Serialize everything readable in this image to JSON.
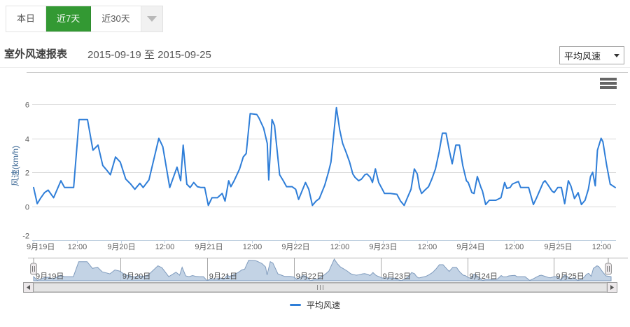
{
  "tabs": {
    "items": [
      {
        "label": "本日",
        "active": false
      },
      {
        "label": "近7天",
        "active": true
      },
      {
        "label": "近30天",
        "active": false
      }
    ]
  },
  "header": {
    "title": "室外风速报表",
    "date_range": "2015-09-19 至 2015-09-25",
    "metric_selected": "平均风速"
  },
  "legend": {
    "series_label": "平均风速"
  },
  "colors": {
    "accent_green": "#339933",
    "series_line": "#2f7ed8",
    "navigator_fill": "#b9cbe0",
    "navigator_line": "#7f9bbd",
    "axis_title": "#4d759e",
    "gridline": "#d8d8d8",
    "axis_line": "#c0d0e0"
  },
  "chart_data": {
    "type": "line",
    "title": "",
    "xlabel": "",
    "ylabel": "风速(km/h)",
    "ylim": [
      -2,
      6
    ],
    "yticks": [
      6,
      4,
      2,
      0,
      -2
    ],
    "x_range_hours": 160,
    "x_start": "2015-09-19 00:00",
    "x_end": "2015-09-25 16:00",
    "grid": true,
    "legend_position": "bottom",
    "xtick_labels": [
      "9月19日",
      "12:00",
      "9月20日",
      "12:00",
      "9月21日",
      "12:00",
      "9月22日",
      "12:00",
      "9月23日",
      "12:00",
      "9月24日",
      "12:00",
      "9月25日",
      "12:00"
    ],
    "navigator_labels": [
      "9月19日",
      "9月20日",
      "9月21日",
      "9月22日",
      "9月23日",
      "9月24日",
      "9月25日"
    ],
    "series": [
      {
        "name": "平均风速",
        "unit": "km/h",
        "points": [
          [
            0,
            1.1
          ],
          [
            1,
            0.15
          ],
          [
            2,
            0.5
          ],
          [
            3,
            0.8
          ],
          [
            4,
            0.95
          ],
          [
            5.5,
            0.5
          ],
          [
            7.5,
            1.5
          ],
          [
            8.5,
            1.1
          ],
          [
            10,
            1.1
          ],
          [
            11,
            1.1
          ],
          [
            12.5,
            5.1
          ],
          [
            14.8,
            5.1
          ],
          [
            16.3,
            3.3
          ],
          [
            17.7,
            3.6
          ],
          [
            19,
            2.4
          ],
          [
            20.2,
            2.1
          ],
          [
            21.1,
            1.85
          ],
          [
            22.5,
            2.9
          ],
          [
            23.8,
            2.6
          ],
          [
            25.3,
            1.6
          ],
          [
            26.7,
            1.3
          ],
          [
            27.8,
            1.0
          ],
          [
            29.2,
            1.35
          ],
          [
            30.1,
            1.1
          ],
          [
            31.7,
            1.55
          ],
          [
            34.4,
            4.0
          ],
          [
            35.5,
            3.5
          ],
          [
            37.4,
            1.1
          ],
          [
            39.4,
            2.3
          ],
          [
            40.4,
            1.5
          ],
          [
            41.1,
            3.6
          ],
          [
            42.1,
            1.3
          ],
          [
            43,
            1.1
          ],
          [
            44,
            1.4
          ],
          [
            45,
            1.15
          ],
          [
            46,
            1.1
          ],
          [
            47,
            1.1
          ],
          [
            48,
            0.05
          ],
          [
            49,
            0.5
          ],
          [
            50.5,
            0.5
          ],
          [
            51.8,
            0.75
          ],
          [
            52.6,
            0.3
          ],
          [
            53.6,
            1.5
          ],
          [
            54.2,
            1.15
          ],
          [
            55.1,
            1.5
          ],
          [
            56.6,
            2.2
          ],
          [
            57.6,
            2.9
          ],
          [
            58.4,
            3.1
          ],
          [
            59.5,
            5.45
          ],
          [
            61.3,
            5.4
          ],
          [
            61.9,
            5.2
          ],
          [
            63.2,
            4.6
          ],
          [
            64.2,
            3.7
          ],
          [
            64.6,
            1.55
          ],
          [
            65.5,
            5.1
          ],
          [
            66.2,
            4.75
          ],
          [
            67.6,
            1.85
          ],
          [
            68.6,
            1.5
          ],
          [
            69.5,
            1.15
          ],
          [
            71,
            1.15
          ],
          [
            72,
            1.0
          ],
          [
            72.8,
            0.4
          ],
          [
            74.7,
            1.4
          ],
          [
            75.6,
            1.0
          ],
          [
            76.6,
            0.05
          ],
          [
            77.6,
            0.3
          ],
          [
            78.5,
            0.45
          ],
          [
            80,
            1.25
          ],
          [
            81,
            2.0
          ],
          [
            81.7,
            2.6
          ],
          [
            83.2,
            5.8
          ],
          [
            84.1,
            4.5
          ],
          [
            84.9,
            3.7
          ],
          [
            85.8,
            3.2
          ],
          [
            86.8,
            2.6
          ],
          [
            87.7,
            1.9
          ],
          [
            88.3,
            1.7
          ],
          [
            89.3,
            1.5
          ],
          [
            90.1,
            1.6
          ],
          [
            91,
            1.85
          ],
          [
            91.6,
            1.9
          ],
          [
            92.5,
            1.7
          ],
          [
            93.1,
            1.4
          ],
          [
            93.9,
            2.2
          ],
          [
            94.8,
            1.4
          ],
          [
            95.8,
            1.0
          ],
          [
            96.4,
            0.75
          ],
          [
            98,
            0.75
          ],
          [
            99.8,
            0.7
          ],
          [
            100.8,
            0.3
          ],
          [
            101.8,
            0.05
          ],
          [
            102.7,
            0.5
          ],
          [
            103.7,
            1.0
          ],
          [
            104.6,
            2.2
          ],
          [
            105.4,
            1.9
          ],
          [
            106,
            1.1
          ],
          [
            106.6,
            0.75
          ],
          [
            107.5,
            0.95
          ],
          [
            108.5,
            1.15
          ],
          [
            109.4,
            1.6
          ],
          [
            110.4,
            2.2
          ],
          [
            111.4,
            3.2
          ],
          [
            112.3,
            4.3
          ],
          [
            113.3,
            4.3
          ],
          [
            114.2,
            3.3
          ],
          [
            115,
            2.5
          ],
          [
            116,
            3.6
          ],
          [
            117,
            3.6
          ],
          [
            117.9,
            2.4
          ],
          [
            118.9,
            1.5
          ],
          [
            119.4,
            1.4
          ],
          [
            120.4,
            0.8
          ],
          [
            121,
            0.75
          ],
          [
            121.9,
            1.75
          ],
          [
            122.9,
            1.1
          ],
          [
            123.3,
            0.9
          ],
          [
            124.2,
            0.1
          ],
          [
            125.2,
            0.35
          ],
          [
            127,
            0.35
          ],
          [
            128.4,
            0.5
          ],
          [
            129.4,
            1.4
          ],
          [
            130,
            1.05
          ],
          [
            130.9,
            1.1
          ],
          [
            131.5,
            1.3
          ],
          [
            132.5,
            1.4
          ],
          [
            133.2,
            1.45
          ],
          [
            133.8,
            1.1
          ],
          [
            136,
            1.1
          ],
          [
            137.3,
            0.1
          ],
          [
            138.2,
            0.5
          ],
          [
            139.2,
            1.0
          ],
          [
            140,
            1.4
          ],
          [
            140.5,
            1.5
          ],
          [
            141.5,
            1.2
          ],
          [
            142.4,
            0.9
          ],
          [
            143,
            0.8
          ],
          [
            144,
            1.1
          ],
          [
            145,
            1.1
          ],
          [
            145.9,
            0.15
          ],
          [
            146.9,
            1.5
          ],
          [
            147.6,
            1.2
          ],
          [
            148.6,
            0.45
          ],
          [
            149.6,
            0.8
          ],
          [
            150.5,
            0.1
          ],
          [
            151.5,
            0.35
          ],
          [
            152.4,
            1.0
          ],
          [
            153,
            1.75
          ],
          [
            153.6,
            2.0
          ],
          [
            154.3,
            1.2
          ],
          [
            154.9,
            3.3
          ],
          [
            155.9,
            4.0
          ],
          [
            156.4,
            3.8
          ],
          [
            157.4,
            2.45
          ],
          [
            158.4,
            1.3
          ],
          [
            159.8,
            1.1
          ]
        ]
      }
    ]
  }
}
